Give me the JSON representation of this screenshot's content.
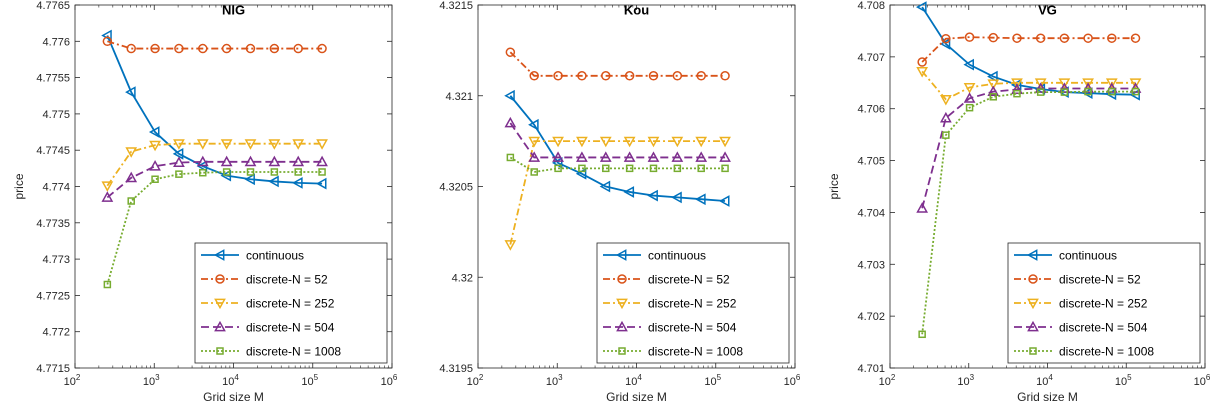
{
  "chart_data": [
    {
      "type": "line",
      "title": "NIG",
      "xlabel": "Grid size M",
      "ylabel": "price",
      "xscale": "log",
      "xlim": [
        100,
        1000000
      ],
      "ylim": [
        4.7715,
        4.7765
      ],
      "x_ticks": [
        100,
        1000,
        10000,
        100000,
        1000000
      ],
      "x_tick_labels": [
        [
          "10",
          "2"
        ],
        [
          "10",
          "3"
        ],
        [
          "10",
          "4"
        ],
        [
          "10",
          "5"
        ],
        [
          "10",
          "6"
        ]
      ],
      "y_ticks": [
        4.7715,
        4.772,
        4.7725,
        4.773,
        4.7735,
        4.774,
        4.7745,
        4.775,
        4.7755,
        4.776,
        4.7765
      ],
      "y_tick_labels": [
        "4.7715",
        "4.772",
        "4.7725",
        "4.773",
        "4.7735",
        "4.774",
        "4.7745",
        "4.775",
        "4.7755",
        "4.776",
        "4.7765"
      ],
      "legend_position": "bottom-right",
      "x": [
        256,
        512,
        1024,
        2048,
        4096,
        8192,
        16384,
        32768,
        65536,
        131072
      ],
      "series": [
        {
          "name": "continuous",
          "values": [
            4.77608,
            4.7753,
            4.77475,
            4.77445,
            4.77428,
            4.77415,
            4.7741,
            4.77407,
            4.77405,
            4.77404
          ]
        },
        {
          "name": "discrete-N = 52",
          "values": [
            4.776,
            4.7759,
            4.7759,
            4.7759,
            4.7759,
            4.7759,
            4.7759,
            4.7759,
            4.7759,
            4.7759
          ]
        },
        {
          "name": "discrete-N = 252",
          "values": [
            4.77401,
            4.77448,
            4.77457,
            4.77459,
            4.77459,
            4.77459,
            4.77459,
            4.77459,
            4.77459,
            4.77459
          ]
        },
        {
          "name": "discrete-N = 504",
          "values": [
            4.77385,
            4.77412,
            4.77428,
            4.77433,
            4.77434,
            4.77434,
            4.77434,
            4.77434,
            4.77434,
            4.77434
          ]
        },
        {
          "name": "discrete-N = 1008",
          "values": [
            4.77265,
            4.7738,
            4.7741,
            4.77417,
            4.77419,
            4.7742,
            4.7742,
            4.7742,
            4.7742,
            4.7742
          ]
        }
      ]
    },
    {
      "type": "line",
      "title": "Kou",
      "xlabel": "Grid size M",
      "ylabel": "",
      "xscale": "log",
      "xlim": [
        100,
        1000000
      ],
      "ylim": [
        4.3195,
        4.3215
      ],
      "x_ticks": [
        100,
        1000,
        10000,
        100000,
        1000000
      ],
      "x_tick_labels": [
        [
          "10",
          "2"
        ],
        [
          "10",
          "3"
        ],
        [
          "10",
          "4"
        ],
        [
          "10",
          "5"
        ],
        [
          "10",
          "6"
        ]
      ],
      "y_ticks": [
        4.3195,
        4.32,
        4.3205,
        4.321,
        4.3215
      ],
      "y_tick_labels": [
        "4.3195",
        "4.32",
        "4.3205",
        "4.321",
        "4.3215"
      ],
      "legend_position": "bottom-right",
      "x": [
        256,
        512,
        1024,
        2048,
        4096,
        8192,
        16384,
        32768,
        65536,
        131072
      ],
      "series": [
        {
          "name": "continuous",
          "values": [
            4.321,
            4.32084,
            4.32063,
            4.32057,
            4.3205,
            4.32047,
            4.32045,
            4.32044,
            4.32043,
            4.32042
          ]
        },
        {
          "name": "discrete-N = 52",
          "values": [
            4.32124,
            4.32111,
            4.32111,
            4.32111,
            4.32111,
            4.32111,
            4.32111,
            4.32111,
            4.32111,
            4.32111
          ]
        },
        {
          "name": "discrete-N = 252",
          "values": [
            4.32018,
            4.32075,
            4.32075,
            4.32075,
            4.32075,
            4.32075,
            4.32075,
            4.32075,
            4.32075,
            4.32075
          ]
        },
        {
          "name": "discrete-N = 504",
          "values": [
            4.32085,
            4.32066,
            4.32066,
            4.32066,
            4.32066,
            4.32066,
            4.32066,
            4.32066,
            4.32066,
            4.32066
          ]
        },
        {
          "name": "discrete-N = 1008",
          "values": [
            4.32066,
            4.32058,
            4.3206,
            4.3206,
            4.3206,
            4.3206,
            4.3206,
            4.3206,
            4.3206,
            4.3206
          ]
        }
      ]
    },
    {
      "type": "line",
      "title": "VG",
      "xlabel": "Grid size M",
      "ylabel": "price",
      "xscale": "log",
      "xlim": [
        100,
        1000000
      ],
      "ylim": [
        4.701,
        4.708
      ],
      "x_ticks": [
        100,
        1000,
        10000,
        100000,
        1000000
      ],
      "x_tick_labels": [
        [
          "10",
          "2"
        ],
        [
          "10",
          "3"
        ],
        [
          "10",
          "4"
        ],
        [
          "10",
          "5"
        ],
        [
          "10",
          "6"
        ]
      ],
      "y_ticks": [
        4.701,
        4.702,
        4.703,
        4.704,
        4.705,
        4.706,
        4.707,
        4.708
      ],
      "y_tick_labels": [
        "4.701",
        "4.702",
        "4.703",
        "4.704",
        "4.705",
        "4.706",
        "4.707",
        "4.708"
      ],
      "legend_position": "bottom-right",
      "x": [
        256,
        512,
        1024,
        2048,
        4096,
        8192,
        16384,
        32768,
        65536,
        131072
      ],
      "series": [
        {
          "name": "continuous",
          "values": [
            4.70796,
            4.70725,
            4.70685,
            4.70662,
            4.70646,
            4.70638,
            4.70632,
            4.7063,
            4.70628,
            4.70627
          ]
        },
        {
          "name": "discrete-N = 52",
          "values": [
            4.7069,
            4.70735,
            4.70738,
            4.70737,
            4.70736,
            4.70736,
            4.70736,
            4.70736,
            4.70736,
            4.70736
          ]
        },
        {
          "name": "discrete-N = 252",
          "values": [
            4.70672,
            4.70618,
            4.70641,
            4.70648,
            4.7065,
            4.7065,
            4.7065,
            4.7065,
            4.7065,
            4.7065
          ]
        },
        {
          "name": "discrete-N = 504",
          "values": [
            4.70408,
            4.70582,
            4.7062,
            4.70633,
            4.70637,
            4.70639,
            4.70639,
            4.70639,
            4.70639,
            4.70639
          ]
        },
        {
          "name": "discrete-N = 1008",
          "values": [
            4.70165,
            4.70549,
            4.70602,
            4.70623,
            4.70629,
            4.70632,
            4.70632,
            4.70633,
            4.70633,
            4.70633
          ]
        }
      ]
    }
  ],
  "series_styles": [
    {
      "color": "#0072BD",
      "dash": "",
      "marker": "triangle-left"
    },
    {
      "color": "#D95319",
      "dash": "7 3 2 3",
      "marker": "circle"
    },
    {
      "color": "#EDB120",
      "dash": "7 3 2 3",
      "marker": "triangle-down"
    },
    {
      "color": "#7E2F8E",
      "dash": "8 4",
      "marker": "triangle-up"
    },
    {
      "color": "#77AC30",
      "dash": "2 2",
      "marker": "square"
    }
  ]
}
